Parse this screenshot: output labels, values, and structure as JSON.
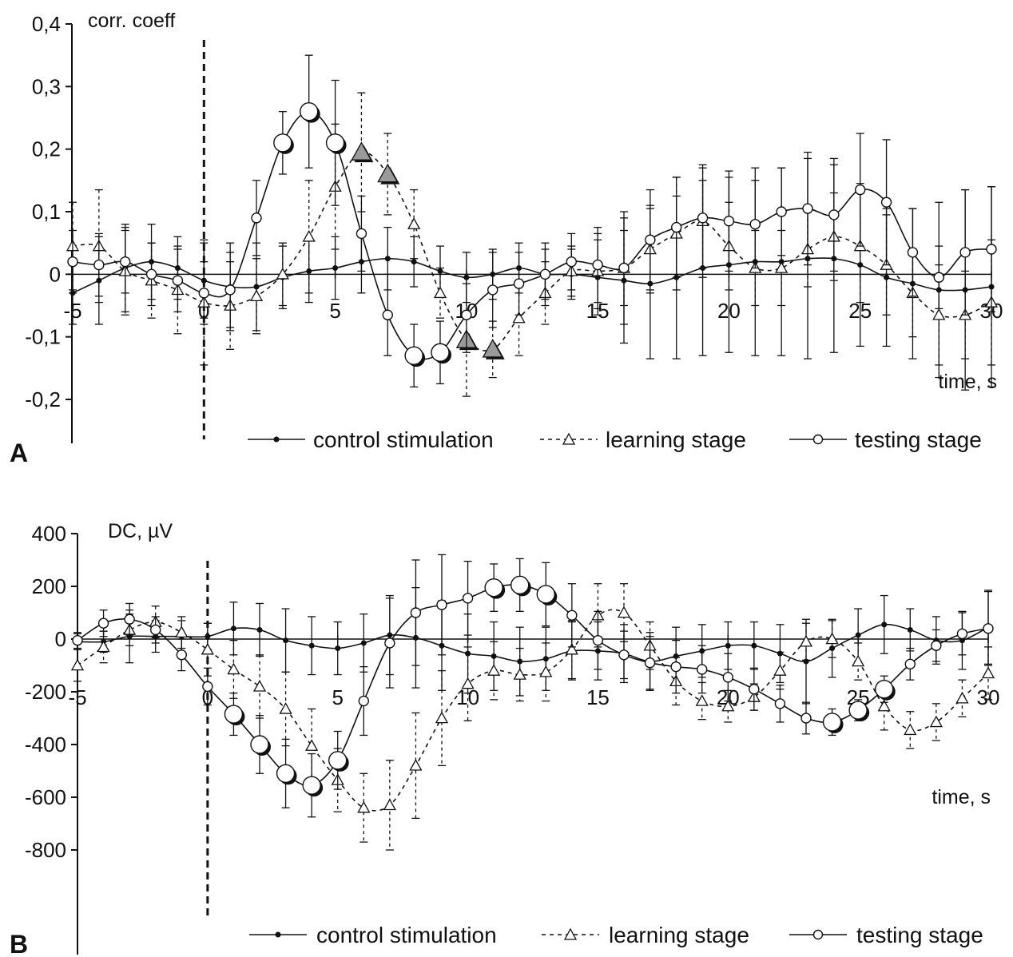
{
  "chart_data": [
    {
      "panel": "A",
      "type": "line",
      "ylabel": "corr. coeff",
      "xlabel": "time, s",
      "xlim": [
        -5,
        30
      ],
      "ylim": [
        -0.3,
        0.4
      ],
      "yticks": [
        0.4,
        0.3,
        0.2,
        0.1,
        0,
        -0.1,
        -0.2
      ],
      "ytick_labels": [
        "0,4",
        "0,3",
        "0,2",
        "0,1",
        "0",
        "-0,1",
        "-0,2"
      ],
      "xticks": [
        -5,
        0,
        5,
        10,
        15,
        20,
        25,
        30
      ],
      "xtick_labels": [
        "-5",
        "0",
        "5",
        "10",
        "15",
        "20",
        "25",
        "30"
      ],
      "stimulus_marker_x": 0,
      "grid": false,
      "legend_position": "bottom",
      "series": [
        {
          "name": "control stimulation",
          "marker": "dot",
          "line": "solid",
          "x": [
            -5,
            -4,
            -3,
            -2,
            -1,
            0,
            1,
            2,
            3,
            4,
            5,
            6,
            7,
            8,
            9,
            10,
            11,
            12,
            13,
            14,
            15,
            16,
            17,
            18,
            19,
            20,
            21,
            22,
            23,
            24,
            25,
            26,
            27,
            28,
            29,
            30
          ],
          "y": [
            -0.03,
            -0.01,
            0.01,
            0.02,
            0.01,
            -0.01,
            -0.02,
            -0.02,
            -0.005,
            0.005,
            0.01,
            0.02,
            0.025,
            0.02,
            0.005,
            -0.005,
            0.0,
            0.01,
            0.0,
            0.0,
            -0.005,
            -0.01,
            -0.015,
            -0.005,
            0.01,
            0.015,
            0.02,
            0.02,
            0.025,
            0.025,
            0.015,
            -0.005,
            -0.015,
            -0.025,
            -0.025,
            -0.02
          ],
          "err": [
            0.05,
            0.07,
            0.07,
            0.06,
            0.05,
            0.06,
            0.07,
            0.07,
            0.05,
            0.05,
            0.05,
            0.05,
            0.05,
            0.04,
            0.04,
            0.04,
            0.04,
            0.04,
            0.04,
            0.04,
            0.06,
            0.1,
            0.12,
            0.13,
            0.14,
            0.14,
            0.15,
            0.15,
            0.16,
            0.15,
            0.13,
            0.11,
            0.12,
            0.14,
            0.16,
            0.16
          ]
        },
        {
          "name": "learning stage",
          "marker": "triangle",
          "line": "dotted",
          "x": [
            -5,
            -4,
            -3,
            -2,
            -1,
            0,
            1,
            2,
            3,
            4,
            5,
            6,
            7,
            8,
            9,
            10,
            11,
            12,
            13,
            14,
            15,
            16,
            17,
            18,
            19,
            20,
            21,
            22,
            23,
            24,
            25,
            26,
            27,
            28,
            29,
            30
          ],
          "y": [
            0.045,
            0.045,
            0.005,
            -0.01,
            -0.025,
            -0.045,
            -0.05,
            -0.035,
            0.0,
            0.06,
            0.14,
            0.195,
            0.16,
            0.08,
            -0.03,
            -0.105,
            -0.12,
            -0.07,
            -0.03,
            0.005,
            0.005,
            0.01,
            0.04,
            0.065,
            0.085,
            0.045,
            0.01,
            0.01,
            0.04,
            0.06,
            0.045,
            0.015,
            -0.03,
            -0.065,
            -0.065,
            -0.045
          ],
          "err": [
            0.07,
            0.09,
            0.07,
            0.06,
            0.07,
            0.1,
            0.07,
            0.06,
            0.05,
            0.09,
            0.1,
            0.095,
            0.065,
            0.055,
            0.04,
            0.09,
            0.045,
            0.06,
            0.05,
            0.04,
            0.06,
            0.06,
            0.07,
            0.09,
            0.09,
            0.07,
            0.06,
            0.06,
            0.06,
            0.07,
            0.09,
            0.08,
            0.07,
            0.08,
            0.07,
            0.1
          ],
          "significant_x": [
            6,
            7,
            10,
            11
          ]
        },
        {
          "name": "testing stage",
          "marker": "circle",
          "line": "solid",
          "x": [
            -5,
            -4,
            -3,
            -2,
            -1,
            0,
            1,
            2,
            3,
            4,
            5,
            6,
            7,
            8,
            9,
            10,
            11,
            12,
            13,
            14,
            15,
            16,
            17,
            18,
            19,
            20,
            21,
            22,
            23,
            24,
            25,
            26,
            27,
            28,
            29,
            30
          ],
          "y": [
            0.02,
            0.015,
            0.02,
            0.0,
            -0.01,
            -0.03,
            -0.025,
            0.09,
            0.21,
            0.26,
            0.21,
            0.065,
            -0.065,
            -0.13,
            -0.125,
            -0.065,
            -0.025,
            -0.015,
            0.0,
            0.02,
            0.015,
            0.01,
            0.055,
            0.075,
            0.09,
            0.085,
            0.08,
            0.1,
            0.105,
            0.095,
            0.135,
            0.115,
            0.035,
            -0.005,
            0.035,
            0.04
          ],
          "err": [
            0.05,
            0.05,
            0.05,
            0.05,
            0.05,
            0.05,
            0.06,
            0.06,
            0.05,
            0.09,
            0.1,
            0.06,
            0.065,
            0.05,
            0.05,
            0.06,
            0.06,
            0.05,
            0.05,
            0.045,
            0.06,
            0.09,
            0.08,
            0.08,
            0.08,
            0.08,
            0.07,
            0.07,
            0.09,
            0.09,
            0.09,
            0.1,
            0.07,
            0.05,
            0.1,
            0.1
          ],
          "significant_x": [
            3,
            4,
            5,
            8,
            9
          ]
        }
      ],
      "legend": [
        "control stimulation",
        "learning stage",
        "testing stage"
      ]
    },
    {
      "panel": "B",
      "type": "line",
      "ylabel": "DC, µV",
      "xlabel": "time, s",
      "xlim": [
        -5,
        30
      ],
      "ylim": [
        -900,
        400
      ],
      "yticks": [
        400,
        200,
        0,
        -200,
        -400,
        -600,
        -800
      ],
      "ytick_labels": [
        "400",
        "200",
        "0",
        "-200",
        "-400",
        "-600",
        "-800"
      ],
      "xticks": [
        -5,
        0,
        5,
        10,
        15,
        20,
        25,
        30
      ],
      "xtick_labels": [
        "-5",
        "0",
        "5",
        "10",
        "15",
        "20",
        "25",
        "30"
      ],
      "stimulus_marker_x": 0,
      "grid": false,
      "legend_position": "bottom",
      "series": [
        {
          "name": "control stimulation",
          "marker": "dot",
          "line": "solid",
          "x": [
            -5,
            -4,
            -3,
            -2,
            -1,
            0,
            1,
            2,
            3,
            4,
            5,
            6,
            7,
            8,
            9,
            10,
            11,
            12,
            13,
            14,
            15,
            16,
            17,
            18,
            19,
            20,
            21,
            22,
            23,
            24,
            25,
            26,
            27,
            28,
            29,
            30
          ],
          "y": [
            -10,
            -10,
            10,
            10,
            10,
            10,
            40,
            35,
            -5,
            -25,
            -35,
            -15,
            15,
            5,
            -25,
            -55,
            -65,
            -85,
            -75,
            -45,
            -45,
            -55,
            -85,
            -65,
            -45,
            -25,
            -25,
            -55,
            -85,
            -35,
            15,
            55,
            35,
            -5,
            -5,
            45
          ],
          "err": [
            30,
            40,
            100,
            60,
            60,
            50,
            100,
            100,
            120,
            110,
            100,
            110,
            150,
            190,
            170,
            150,
            130,
            130,
            120,
            110,
            110,
            110,
            110,
            110,
            100,
            90,
            90,
            110,
            160,
            110,
            100,
            110,
            80,
            90,
            110,
            140
          ]
        },
        {
          "name": "learning stage",
          "marker": "triangle",
          "line": "dotted",
          "x": [
            -5,
            -4,
            -3,
            -2,
            -1,
            0,
            1,
            2,
            3,
            4,
            5,
            6,
            7,
            8,
            9,
            10,
            11,
            12,
            13,
            14,
            15,
            16,
            17,
            18,
            19,
            20,
            21,
            22,
            23,
            24,
            25,
            26,
            27,
            28,
            29,
            30
          ],
          "y": [
            -100,
            -30,
            35,
            65,
            25,
            -40,
            -115,
            -180,
            -265,
            -405,
            -535,
            -640,
            -630,
            -480,
            -300,
            -170,
            -120,
            -135,
            -125,
            -40,
            90,
            100,
            -25,
            -160,
            -235,
            -255,
            -220,
            -120,
            -10,
            0,
            -85,
            -255,
            -345,
            -315,
            -225,
            -130
          ],
          "err": [
            60,
            60,
            60,
            60,
            60,
            100,
            110,
            120,
            140,
            140,
            120,
            130,
            170,
            200,
            180,
            140,
            110,
            100,
            110,
            110,
            120,
            110,
            90,
            90,
            70,
            60,
            50,
            70,
            70,
            70,
            70,
            90,
            70,
            70,
            70,
            100
          ]
        },
        {
          "name": "testing stage",
          "marker": "circle",
          "line": "solid",
          "x": [
            -5,
            -4,
            -3,
            -2,
            -1,
            0,
            1,
            2,
            3,
            4,
            5,
            6,
            7,
            8,
            9,
            10,
            11,
            12,
            13,
            14,
            15,
            16,
            17,
            18,
            19,
            20,
            21,
            22,
            23,
            24,
            25,
            26,
            27,
            28,
            29,
            30
          ],
          "y": [
            -5,
            60,
            75,
            35,
            -60,
            -180,
            -285,
            -400,
            -510,
            -555,
            -460,
            -235,
            -15,
            100,
            130,
            155,
            195,
            205,
            170,
            90,
            -5,
            -60,
            -90,
            -105,
            -115,
            -145,
            -190,
            -245,
            -300,
            -315,
            -270,
            -190,
            -95,
            -25,
            20,
            40
          ],
          "err": [
            30,
            50,
            60,
            50,
            60,
            70,
            80,
            110,
            130,
            120,
            110,
            130,
            170,
            200,
            190,
            140,
            90,
            100,
            120,
            120,
            110,
            90,
            100,
            100,
            90,
            90,
            80,
            70,
            60,
            50,
            40,
            50,
            60,
            60,
            80,
            140
          ],
          "significant_x": [
            1,
            2,
            3,
            4,
            5,
            11,
            12,
            13,
            24,
            25,
            26
          ]
        }
      ],
      "legend": [
        "control stimulation",
        "learning stage",
        "testing stage"
      ]
    }
  ],
  "colors": {
    "axis": "#111111",
    "line": "#111111",
    "marker_fill_plain": "#ffffff",
    "marker_fill_significant_triangle": "#9a9a9a",
    "marker_shadow_significant_circle": "#111111"
  }
}
